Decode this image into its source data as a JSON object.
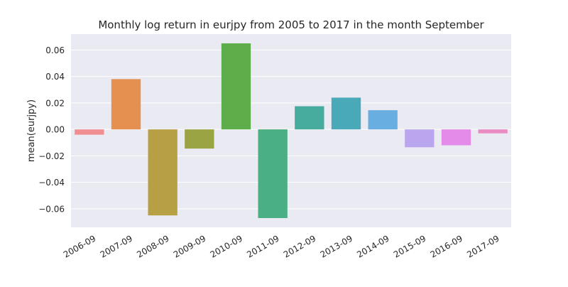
{
  "chart_data": {
    "type": "bar",
    "title": "Monthly log return in eurjpy from 2005 to 2017 in the month September",
    "xlabel": "",
    "ylabel": "mean(eurjpy)",
    "ylim": [
      -0.074,
      0.072
    ],
    "yticks": [
      -0.06,
      -0.04,
      -0.02,
      0.0,
      0.02,
      0.04,
      0.06
    ],
    "ytick_labels": [
      "−0.06",
      "−0.04",
      "−0.02",
      "0.00",
      "0.02",
      "0.04",
      "0.06"
    ],
    "grid": true,
    "categories": [
      "2006-09",
      "2007-09",
      "2008-09",
      "2009-09",
      "2010-09",
      "2011-09",
      "2012-09",
      "2013-09",
      "2014-09",
      "2015-09",
      "2016-09",
      "2017-09"
    ],
    "values": [
      -0.004,
      0.038,
      -0.065,
      -0.0145,
      0.065,
      -0.067,
      0.0175,
      0.024,
      0.0145,
      -0.0135,
      -0.012,
      -0.003
    ],
    "colors": [
      "#f08e92",
      "#e59050",
      "#b7a043",
      "#9aa443",
      "#5dae4b",
      "#4aaf83",
      "#47ab9e",
      "#49a9b8",
      "#68aee0",
      "#b9a6ee",
      "#e48ae9",
      "#ea8cc4"
    ]
  }
}
